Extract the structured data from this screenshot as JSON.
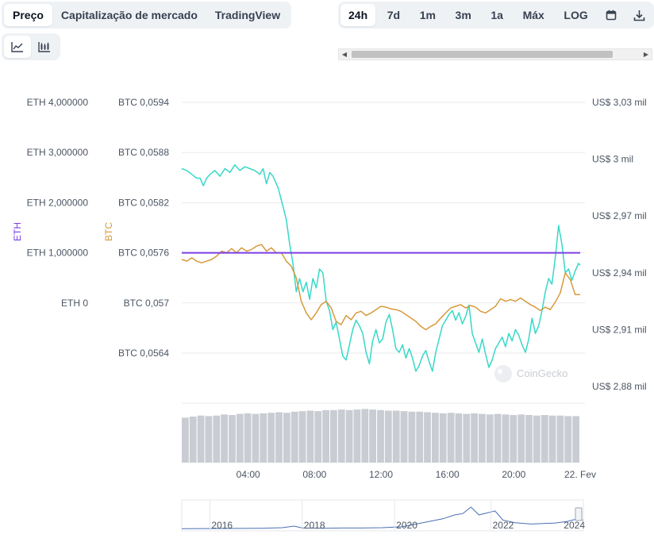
{
  "tabs": [
    {
      "label": "Preço",
      "active": true
    },
    {
      "label": "Capitalização de mercado",
      "active": false
    },
    {
      "label": "TradingView",
      "active": false
    }
  ],
  "ranges": [
    {
      "label": "24h",
      "active": true
    },
    {
      "label": "7d",
      "active": false
    },
    {
      "label": "1m",
      "active": false
    },
    {
      "label": "3m",
      "active": false
    },
    {
      "label": "1a",
      "active": false
    },
    {
      "label": "Máx",
      "active": false
    },
    {
      "label": "LOG",
      "active": false
    }
  ],
  "icons": {
    "calendar": "calendar-icon",
    "download": "download-icon",
    "line_chart": "line-chart-icon",
    "candlestick": "candlestick-icon"
  },
  "watermark": "CoinGecko",
  "colors": {
    "usd": "#37d8c8",
    "btc": "#d69a3c",
    "eth": "#7b3fe4",
    "grid": "#e8eaee",
    "volume": "#c9ccd2",
    "navigator": "#4a6fb5"
  },
  "chart_data": {
    "type": "line",
    "x_ticks": [
      "04:00",
      "08:00",
      "12:00",
      "16:00",
      "20:00",
      "22. Fev"
    ],
    "x_range_hours": [
      0,
      24
    ],
    "axes": {
      "eth": {
        "title": "ETH",
        "ticks": [
          "ETH 0",
          "ETH 1,000000",
          "ETH 2,000000",
          "ETH 3,000000",
          "ETH 4,000000"
        ],
        "range": [
          0,
          4
        ]
      },
      "btc": {
        "title": "BTC",
        "ticks": [
          "BTC 0,0564",
          "BTC 0,057",
          "BTC 0,0576",
          "BTC 0,0582",
          "BTC 0,0588",
          "BTC 0,0594"
        ],
        "range": [
          0.0564,
          0.0594
        ]
      },
      "usd": {
        "ticks": [
          "US$ 2,88 mil",
          "US$ 2,91 mil",
          "US$ 2,94 mil",
          "US$ 2,97 mil",
          "US$ 3 mil",
          "US$ 3,03 mil"
        ],
        "range": [
          2880,
          3030
        ]
      }
    },
    "series": [
      {
        "axis": "usd",
        "points": [
          [
            0,
            2995
          ],
          [
            0.3,
            2994
          ],
          [
            0.6,
            2992
          ],
          [
            0.9,
            2990
          ],
          [
            1.1,
            2990
          ],
          [
            1.3,
            2986
          ],
          [
            1.5,
            2990
          ],
          [
            1.7,
            2992
          ],
          [
            2,
            2994
          ],
          [
            2.3,
            2991
          ],
          [
            2.6,
            2995
          ],
          [
            2.9,
            2993
          ],
          [
            3.2,
            2997
          ],
          [
            3.5,
            2994
          ],
          [
            3.8,
            2996
          ],
          [
            4.1,
            2995
          ],
          [
            4.4,
            2994
          ],
          [
            4.7,
            2992
          ],
          [
            4.9,
            2995
          ],
          [
            5.1,
            2987
          ],
          [
            5.3,
            2993
          ],
          [
            5.5,
            2991
          ],
          [
            5.8,
            2985
          ],
          [
            6.1,
            2975
          ],
          [
            6.3,
            2968
          ],
          [
            6.5,
            2955
          ],
          [
            6.7,
            2945
          ],
          [
            6.9,
            2930
          ],
          [
            7.1,
            2937
          ],
          [
            7.3,
            2930
          ],
          [
            7.5,
            2935
          ],
          [
            7.7,
            2926
          ],
          [
            7.9,
            2937
          ],
          [
            8.1,
            2932
          ],
          [
            8.3,
            2942
          ],
          [
            8.5,
            2940
          ],
          [
            8.7,
            2925
          ],
          [
            8.9,
            2920
          ],
          [
            9.1,
            2910
          ],
          [
            9.3,
            2914
          ],
          [
            9.5,
            2905
          ],
          [
            9.7,
            2896
          ],
          [
            9.9,
            2894
          ],
          [
            10.1,
            2902
          ],
          [
            10.3,
            2910
          ],
          [
            10.5,
            2915
          ],
          [
            10.7,
            2912
          ],
          [
            10.9,
            2908
          ],
          [
            11.1,
            2898
          ],
          [
            11.3,
            2892
          ],
          [
            11.5,
            2904
          ],
          [
            11.7,
            2910
          ],
          [
            11.9,
            2903
          ],
          [
            12.1,
            2905
          ],
          [
            12.3,
            2914
          ],
          [
            12.5,
            2918
          ],
          [
            12.7,
            2910
          ],
          [
            12.9,
            2900
          ],
          [
            13.1,
            2898
          ],
          [
            13.3,
            2902
          ],
          [
            13.5,
            2895
          ],
          [
            13.7,
            2900
          ],
          [
            13.9,
            2895
          ],
          [
            14.1,
            2888
          ],
          [
            14.3,
            2891
          ],
          [
            14.5,
            2896
          ],
          [
            14.7,
            2899
          ],
          [
            14.9,
            2893
          ],
          [
            15.1,
            2888
          ],
          [
            15.3,
            2898
          ],
          [
            15.5,
            2905
          ],
          [
            15.7,
            2912
          ],
          [
            15.9,
            2915
          ],
          [
            16.1,
            2918
          ],
          [
            16.3,
            2920
          ],
          [
            16.5,
            2915
          ],
          [
            16.7,
            2919
          ],
          [
            16.9,
            2913
          ],
          [
            17.1,
            2917
          ],
          [
            17.3,
            2923
          ],
          [
            17.5,
            2908
          ],
          [
            17.7,
            2903
          ],
          [
            17.9,
            2898
          ],
          [
            18.1,
            2905
          ],
          [
            18.3,
            2897
          ],
          [
            18.5,
            2890
          ],
          [
            18.7,
            2894
          ],
          [
            18.9,
            2900
          ],
          [
            19.1,
            2903
          ],
          [
            19.3,
            2906
          ],
          [
            19.5,
            2901
          ],
          [
            19.7,
            2908
          ],
          [
            19.9,
            2904
          ],
          [
            20.1,
            2910
          ],
          [
            20.3,
            2907
          ],
          [
            20.5,
            2902
          ],
          [
            20.7,
            2898
          ],
          [
            20.9,
            2905
          ],
          [
            21.1,
            2916
          ],
          [
            21.3,
            2908
          ],
          [
            21.5,
            2912
          ],
          [
            21.7,
            2920
          ],
          [
            21.9,
            2930
          ],
          [
            22.1,
            2937
          ],
          [
            22.3,
            2934
          ],
          [
            22.5,
            2948
          ],
          [
            22.7,
            2965
          ],
          [
            22.9,
            2955
          ],
          [
            23.1,
            2940
          ],
          [
            23.3,
            2942
          ],
          [
            23.5,
            2936
          ],
          [
            23.7,
            2941
          ],
          [
            23.9,
            2945
          ],
          [
            24,
            2944
          ]
        ]
      },
      {
        "axis": "btc",
        "points": [
          [
            0,
            0.05752
          ],
          [
            0.3,
            0.0575
          ],
          [
            0.6,
            0.05754
          ],
          [
            0.9,
            0.0575
          ],
          [
            1.2,
            0.05748
          ],
          [
            1.5,
            0.0575
          ],
          [
            1.8,
            0.05752
          ],
          [
            2.1,
            0.05756
          ],
          [
            2.4,
            0.05762
          ],
          [
            2.7,
            0.0576
          ],
          [
            3,
            0.05765
          ],
          [
            3.3,
            0.0576
          ],
          [
            3.6,
            0.05766
          ],
          [
            3.9,
            0.05762
          ],
          [
            4.2,
            0.05764
          ],
          [
            4.5,
            0.05768
          ],
          [
            4.8,
            0.0577
          ],
          [
            5.1,
            0.05762
          ],
          [
            5.4,
            0.05766
          ],
          [
            5.7,
            0.0576
          ],
          [
            6,
            0.0576
          ],
          [
            6.3,
            0.0575
          ],
          [
            6.6,
            0.05744
          ],
          [
            6.9,
            0.0573
          ],
          [
            7.2,
            0.05702
          ],
          [
            7.5,
            0.05688
          ],
          [
            7.8,
            0.0568
          ],
          [
            8.1,
            0.05688
          ],
          [
            8.4,
            0.05698
          ],
          [
            8.7,
            0.05702
          ],
          [
            9,
            0.05694
          ],
          [
            9.3,
            0.05678
          ],
          [
            9.6,
            0.05674
          ],
          [
            9.9,
            0.05685
          ],
          [
            10.2,
            0.0568
          ],
          [
            10.5,
            0.05688
          ],
          [
            10.8,
            0.0569
          ],
          [
            11.1,
            0.05685
          ],
          [
            11.4,
            0.05688
          ],
          [
            11.7,
            0.05692
          ],
          [
            12,
            0.05696
          ],
          [
            12.3,
            0.05695
          ],
          [
            12.6,
            0.05693
          ],
          [
            12.9,
            0.05692
          ],
          [
            13.2,
            0.0569
          ],
          [
            13.5,
            0.05686
          ],
          [
            13.8,
            0.05682
          ],
          [
            14.1,
            0.05678
          ],
          [
            14.4,
            0.05672
          ],
          [
            14.7,
            0.05668
          ],
          [
            15,
            0.05672
          ],
          [
            15.3,
            0.05675
          ],
          [
            15.6,
            0.05682
          ],
          [
            15.9,
            0.05688
          ],
          [
            16.2,
            0.05694
          ],
          [
            16.5,
            0.05696
          ],
          [
            16.8,
            0.05698
          ],
          [
            17.1,
            0.05694
          ],
          [
            17.4,
            0.05697
          ],
          [
            17.7,
            0.05695
          ],
          [
            18,
            0.0569
          ],
          [
            18.3,
            0.05688
          ],
          [
            18.6,
            0.05692
          ],
          [
            18.9,
            0.05696
          ],
          [
            19.2,
            0.05705
          ],
          [
            19.5,
            0.05702
          ],
          [
            19.8,
            0.05704
          ],
          [
            20.1,
            0.05702
          ],
          [
            20.4,
            0.05706
          ],
          [
            20.7,
            0.05702
          ],
          [
            21,
            0.05698
          ],
          [
            21.3,
            0.05695
          ],
          [
            21.6,
            0.05691
          ],
          [
            21.9,
            0.05695
          ],
          [
            22.2,
            0.05692
          ],
          [
            22.5,
            0.05701
          ],
          [
            22.8,
            0.05712
          ],
          [
            23.1,
            0.05736
          ],
          [
            23.4,
            0.05728
          ],
          [
            23.7,
            0.0571
          ],
          [
            24,
            0.0571
          ]
        ]
      },
      {
        "axis": "eth",
        "points": [
          [
            0,
            1
          ],
          [
            24,
            1
          ]
        ]
      }
    ],
    "volume": [
      0.82,
      0.84,
      0.86,
      0.85,
      0.86,
      0.88,
      0.87,
      0.89,
      0.9,
      0.89,
      0.9,
      0.91,
      0.92,
      0.91,
      0.93,
      0.94,
      0.95,
      0.94,
      0.96,
      0.96,
      0.97,
      0.96,
      0.97,
      0.98,
      0.97,
      0.96,
      0.95,
      0.95,
      0.94,
      0.93,
      0.93,
      0.92,
      0.91,
      0.9,
      0.91,
      0.9,
      0.89,
      0.9,
      0.89,
      0.88,
      0.89,
      0.88,
      0.87,
      0.88,
      0.87,
      0.86,
      0.87,
      0.86,
      0.86,
      0.85,
      0.85
    ],
    "navigator": {
      "x_ticks": [
        "2016",
        "2018",
        "2020",
        "2022",
        "2024"
      ],
      "points": [
        [
          0,
          0.02
        ],
        [
          0.1,
          0.03
        ],
        [
          0.2,
          0.04
        ],
        [
          0.25,
          0.06
        ],
        [
          0.28,
          0.12
        ],
        [
          0.3,
          0.05
        ],
        [
          0.35,
          0.04
        ],
        [
          0.4,
          0.05
        ],
        [
          0.45,
          0.05
        ],
        [
          0.5,
          0.06
        ],
        [
          0.55,
          0.1
        ],
        [
          0.6,
          0.25
        ],
        [
          0.65,
          0.4
        ],
        [
          0.68,
          0.55
        ],
        [
          0.7,
          0.6
        ],
        [
          0.72,
          0.85
        ],
        [
          0.74,
          0.55
        ],
        [
          0.78,
          0.7
        ],
        [
          0.8,
          0.35
        ],
        [
          0.83,
          0.25
        ],
        [
          0.87,
          0.2
        ],
        [
          0.9,
          0.22
        ],
        [
          0.93,
          0.24
        ],
        [
          0.96,
          0.3
        ],
        [
          0.98,
          0.38
        ],
        [
          1,
          0.35
        ]
      ]
    }
  }
}
